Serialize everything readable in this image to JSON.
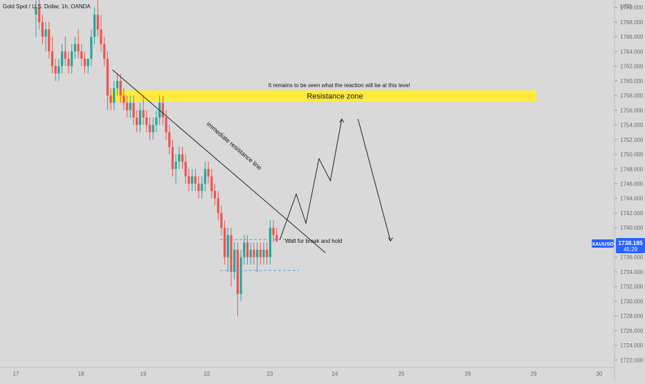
{
  "header": {
    "title": "Gold Spot / U.S. Dollar, 1h, OANDA"
  },
  "colors": {
    "background": "#d9d9d9",
    "up": "#26a69a",
    "down": "#ef5350",
    "zone": "#ffeb3b",
    "price_badge": "#2962ff",
    "axis_text": "#6b6b6b",
    "annotation": "#131722",
    "dashed": "#5b9bd5"
  },
  "chart_data": {
    "type": "candlestick",
    "title": "Gold Spot / U.S. Dollar, 1h, OANDA",
    "currency": "USD",
    "ylim": [
      1721,
      1771
    ],
    "y_ticks": [
      1722,
      1724,
      1726,
      1728,
      1730,
      1732,
      1734,
      1736,
      1738,
      1740,
      1742,
      1744,
      1746,
      1748,
      1750,
      1752,
      1754,
      1756,
      1758,
      1760,
      1762,
      1764,
      1766,
      1768,
      1770
    ],
    "x_ticks": [
      "17",
      "18",
      "19",
      "22",
      "23",
      "24",
      "25",
      "26",
      "29",
      "30"
    ],
    "last_price": {
      "symbol": "XAUUSD",
      "value": "1738.185",
      "countdown": "45:29"
    },
    "candles": [
      [
        1769,
        1771,
        1766,
        1770
      ],
      [
        1770,
        1771,
        1767,
        1768
      ],
      [
        1768,
        1769,
        1765,
        1766
      ],
      [
        1766,
        1768,
        1764,
        1767
      ],
      [
        1767,
        1768,
        1763,
        1764
      ],
      [
        1764,
        1766,
        1761,
        1762
      ],
      [
        1762,
        1763,
        1760,
        1761
      ],
      [
        1761,
        1763,
        1760,
        1762
      ],
      [
        1762,
        1765,
        1761,
        1764
      ],
      [
        1764,
        1766,
        1762,
        1763
      ],
      [
        1763,
        1764,
        1761,
        1762
      ],
      [
        1762,
        1765,
        1761,
        1764
      ],
      [
        1764,
        1766,
        1763,
        1765
      ],
      [
        1765,
        1767,
        1763,
        1764
      ],
      [
        1764,
        1765,
        1762,
        1763
      ],
      [
        1763,
        1764,
        1761,
        1762
      ],
      [
        1762,
        1763,
        1761,
        1763
      ],
      [
        1763,
        1767,
        1762,
        1766
      ],
      [
        1766,
        1770,
        1765,
        1769
      ],
      [
        1769,
        1771,
        1766,
        1767
      ],
      [
        1767,
        1769,
        1764,
        1765
      ],
      [
        1765,
        1766,
        1762,
        1763
      ],
      [
        1763,
        1764,
        1756,
        1758
      ],
      [
        1758,
        1759,
        1756,
        1757
      ],
      [
        1757,
        1760,
        1756,
        1759
      ],
      [
        1759,
        1761,
        1758,
        1760
      ],
      [
        1760,
        1761,
        1757,
        1758
      ],
      [
        1758,
        1759,
        1756,
        1757
      ],
      [
        1757,
        1758,
        1755,
        1756
      ],
      [
        1756,
        1758,
        1755,
        1757
      ],
      [
        1757,
        1758,
        1754,
        1755
      ],
      [
        1755,
        1756,
        1753,
        1754
      ],
      [
        1754,
        1757,
        1753,
        1756
      ],
      [
        1756,
        1758,
        1754,
        1755
      ],
      [
        1755,
        1756,
        1753,
        1754
      ],
      [
        1754,
        1755,
        1752,
        1753
      ],
      [
        1753,
        1755,
        1752,
        1754
      ],
      [
        1754,
        1756,
        1753,
        1755
      ],
      [
        1755,
        1758,
        1754,
        1757
      ],
      [
        1757,
        1758,
        1754,
        1755
      ],
      [
        1755,
        1756,
        1752,
        1753
      ],
      [
        1753,
        1754,
        1750,
        1751
      ],
      [
        1751,
        1752,
        1747,
        1748
      ],
      [
        1748,
        1750,
        1746,
        1749
      ],
      [
        1749,
        1751,
        1748,
        1750
      ],
      [
        1750,
        1751,
        1748,
        1749
      ],
      [
        1749,
        1750,
        1746,
        1747
      ],
      [
        1747,
        1748,
        1745,
        1746
      ],
      [
        1746,
        1748,
        1745,
        1747
      ],
      [
        1747,
        1748,
        1745,
        1746
      ],
      [
        1746,
        1747,
        1744,
        1745
      ],
      [
        1745,
        1747,
        1744,
        1746
      ],
      [
        1746,
        1749,
        1745,
        1748
      ],
      [
        1748,
        1749,
        1746,
        1747
      ],
      [
        1747,
        1748,
        1744,
        1745
      ],
      [
        1745,
        1746,
        1743,
        1744
      ],
      [
        1744,
        1745,
        1741,
        1742
      ],
      [
        1742,
        1743,
        1739,
        1740
      ],
      [
        1740,
        1741,
        1735,
        1736
      ],
      [
        1736,
        1740,
        1734,
        1739
      ],
      [
        1739,
        1740,
        1732,
        1734
      ],
      [
        1734,
        1738,
        1733,
        1737
      ],
      [
        1737,
        1738,
        1728,
        1731
      ],
      [
        1731,
        1737,
        1730,
        1736
      ],
      [
        1736,
        1739,
        1735,
        1738
      ],
      [
        1738,
        1739,
        1735,
        1736
      ],
      [
        1736,
        1738,
        1735,
        1737
      ],
      [
        1737,
        1738,
        1735,
        1736
      ],
      [
        1736,
        1738,
        1734,
        1737
      ],
      [
        1737,
        1738,
        1735,
        1736
      ],
      [
        1736,
        1738,
        1735,
        1737
      ],
      [
        1737,
        1738,
        1735,
        1736
      ],
      [
        1736,
        1741,
        1735,
        1740
      ],
      [
        1740,
        1741,
        1738,
        1739
      ],
      [
        1739,
        1740,
        1738,
        1738.2
      ]
    ],
    "resistance_zone": {
      "low": 1757.2,
      "high": 1758.7,
      "label": "Resistance zone"
    },
    "annotations": [
      {
        "id": "reaction-note",
        "text": "It remains to be seen what the reaction will be at this level"
      },
      {
        "id": "trendline-label",
        "text": "immediate resistance line"
      },
      {
        "id": "break-hold-note",
        "text": "Wait for break and hold"
      }
    ],
    "trendline": {
      "from": [
        23.5,
        1761.5
      ],
      "to": [
        89,
        1736.6
      ]
    },
    "range_box": {
      "high": 1738.4,
      "low": 1734.2
    },
    "projection_path": [
      [
        75,
        1738.4
      ],
      [
        80,
        1744.6
      ],
      [
        83,
        1740.6
      ],
      [
        87,
        1749.4
      ],
      [
        90.5,
        1746.4
      ],
      [
        94,
        1754.8
      ]
    ],
    "projection_down": [
      [
        99,
        1754.8
      ],
      [
        109,
        1738.2
      ]
    ]
  }
}
